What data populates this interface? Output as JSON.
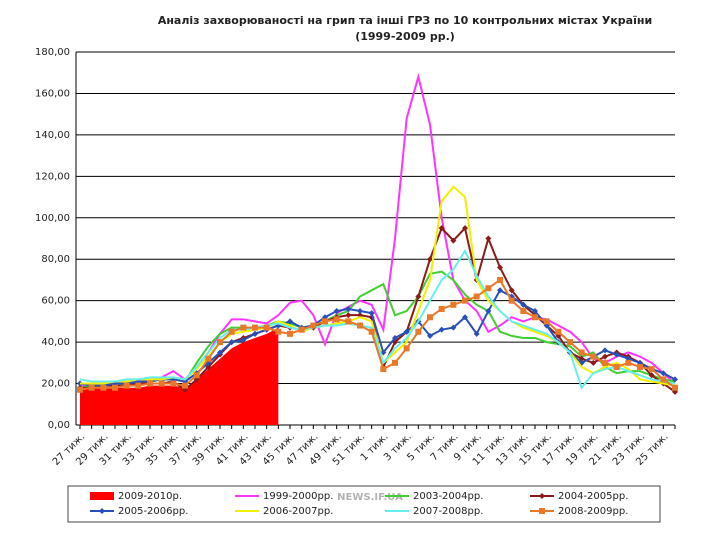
{
  "chart_data": {
    "type": "line",
    "title": "Аналіз захворюваності на грип та інші ГРЗ по 10 контрольних містах України",
    "subtitle": "(1999-2009 рр.)",
    "watermark": "NEWS.IF.UA",
    "categories": [
      "27 тиж.",
      null,
      "29 тиж.",
      null,
      "31 тиж.",
      null,
      "33 тиж.",
      null,
      "35 тиж.",
      null,
      "37 тиж.",
      null,
      "39 тиж.",
      null,
      "41 тиж.",
      null,
      "43 тиж.",
      null,
      "45 тиж.",
      null,
      "47 тиж.",
      null,
      "49 тиж.",
      null,
      "51 тиж.",
      null,
      "1 тиж.",
      null,
      "3 тиж.",
      null,
      "5 тиж.",
      null,
      "7 тиж.",
      null,
      "9 тиж.",
      null,
      "11 тиж.",
      null,
      "13 тиж.",
      null,
      "15 тиж.",
      null,
      "17 тиж.",
      null,
      "19 тиж.",
      null,
      "21 тиж.",
      null,
      "23 тиж.",
      null,
      "25 тиж.",
      null
    ],
    "ylim": [
      0,
      180
    ],
    "yticks": [
      {
        "value": 0,
        "label": "0,00"
      },
      {
        "value": 20,
        "label": "20,00"
      },
      {
        "value": 40,
        "label": "40,00"
      },
      {
        "value": 60,
        "label": "60,00"
      },
      {
        "value": 80,
        "label": "80,00"
      },
      {
        "value": 100,
        "label": "100,00"
      },
      {
        "value": 120,
        "label": "120,00"
      },
      {
        "value": 140,
        "label": "140,00"
      },
      {
        "value": 160,
        "label": "160,00"
      },
      {
        "value": 180,
        "label": "180,00"
      }
    ],
    "grid": true,
    "legend": "bottom",
    "series": [
      {
        "name": "2009-2010р.",
        "color": "#ff0000",
        "style": "area",
        "values": [
          17,
          18,
          18,
          18,
          18,
          18,
          19,
          19,
          19,
          18,
          22,
          27,
          32,
          37,
          40,
          42,
          44,
          47,
          null,
          null,
          null,
          null,
          null,
          null,
          null,
          null,
          null,
          null,
          null,
          null,
          null,
          null,
          null,
          null,
          null,
          null,
          null,
          null,
          null,
          null,
          null,
          null,
          null,
          null,
          null,
          null,
          null,
          null,
          null,
          null,
          null,
          null
        ]
      },
      {
        "name": "1999-2000рр.",
        "color": "#ff33ff",
        "marker": "none",
        "values": [
          19,
          20,
          20,
          21,
          21,
          22,
          22,
          23,
          26,
          22,
          28,
          35,
          44,
          51,
          51,
          50,
          49,
          53,
          59,
          60,
          53,
          39,
          54,
          57,
          60,
          58,
          46,
          90,
          148,
          168,
          145,
          100,
          70,
          60,
          55,
          45,
          48,
          52,
          50,
          52,
          51,
          48,
          45,
          40,
          32,
          30,
          33,
          35,
          33,
          30,
          25,
          20
        ]
      },
      {
        "name": "2003-2004рр.",
        "color": "#44cc33",
        "marker": "none",
        "values": [
          18,
          19,
          19,
          20,
          20,
          21,
          21,
          22,
          22,
          21,
          30,
          38,
          44,
          47,
          47,
          47,
          48,
          50,
          49,
          47,
          47,
          50,
          53,
          55,
          62,
          65,
          68,
          53,
          55,
          62,
          73,
          74,
          70,
          63,
          58,
          55,
          45,
          43,
          42,
          42,
          40,
          39,
          38,
          33,
          35,
          28,
          25,
          26,
          26,
          24,
          22,
          21
        ]
      },
      {
        "name": "2004-2005рр.",
        "color": "#8b1a1a",
        "marker": "diamond",
        "values": [
          18,
          18,
          19,
          19,
          19,
          20,
          20,
          20,
          21,
          17,
          22,
          28,
          34,
          40,
          42,
          44,
          46,
          48,
          47,
          46,
          47,
          50,
          52,
          53,
          53,
          52,
          28,
          40,
          45,
          62,
          80,
          95,
          89,
          95,
          70,
          90,
          76,
          65,
          58,
          53,
          48,
          43,
          35,
          32,
          30,
          33,
          35,
          33,
          30,
          24,
          20,
          16
        ]
      },
      {
        "name": "2005-2006рр.",
        "color": "#2850b8",
        "marker": "diamond",
        "values": [
          20,
          19,
          19,
          20,
          20,
          21,
          21,
          22,
          22,
          21,
          25,
          30,
          35,
          40,
          41,
          44,
          46,
          48,
          50,
          47,
          48,
          52,
          55,
          56,
          55,
          54,
          35,
          42,
          45,
          50,
          43,
          46,
          47,
          52,
          44,
          55,
          65,
          62,
          58,
          55,
          48,
          40,
          35,
          30,
          33,
          36,
          34,
          32,
          30,
          27,
          25,
          22
        ]
      },
      {
        "name": "2006-2007рр.",
        "color": "#f0f000",
        "marker": "none",
        "values": [
          20,
          20,
          20,
          21,
          21,
          22,
          22,
          22,
          23,
          22,
          27,
          33,
          40,
          44,
          45,
          46,
          47,
          50,
          48,
          45,
          47,
          48,
          49,
          50,
          52,
          50,
          30,
          35,
          40,
          55,
          70,
          108,
          115,
          110,
          70,
          60,
          55,
          50,
          47,
          45,
          43,
          40,
          35,
          28,
          25,
          28,
          30,
          27,
          22,
          21,
          20,
          19
        ]
      },
      {
        "name": "2007-2008рр.",
        "color": "#66eeee",
        "marker": "none",
        "values": [
          22,
          21,
          21,
          21,
          22,
          22,
          23,
          23,
          23,
          22,
          28,
          35,
          42,
          46,
          46,
          47,
          48,
          49,
          47,
          46,
          47,
          48,
          48,
          49,
          48,
          47,
          30,
          37,
          42,
          50,
          60,
          70,
          75,
          84,
          72,
          62,
          55,
          50,
          48,
          46,
          44,
          40,
          35,
          18,
          25,
          27,
          28,
          26,
          24,
          22,
          21,
          20
        ]
      },
      {
        "name": "2008-2009рр.",
        "color": "#e8782a",
        "marker": "square",
        "values": [
          17,
          18,
          18,
          18,
          19,
          19,
          20,
          20,
          20,
          19,
          24,
          32,
          40,
          45,
          47,
          47,
          47,
          45,
          44,
          46,
          48,
          50,
          51,
          50,
          48,
          45,
          27,
          30,
          37,
          45,
          52,
          56,
          58,
          60,
          62,
          66,
          70,
          60,
          55,
          52,
          50,
          45,
          40,
          35,
          33,
          30,
          28,
          30,
          28,
          27,
          22,
          18
        ]
      }
    ]
  }
}
